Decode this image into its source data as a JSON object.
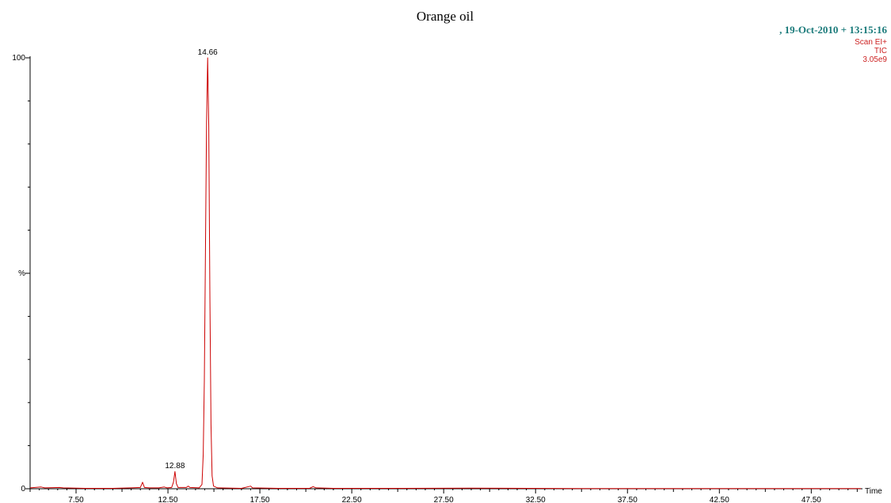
{
  "chart_data": {
    "type": "line",
    "title": "Orange oil",
    "header": {
      "date_line": ",  19-Oct-2010 + 13:15:16",
      "scan_mode": "Scan EI+",
      "trace": "TIC",
      "intensity": "3.05e9"
    },
    "xlabel": "Time",
    "ylabel": "%",
    "xlim": [
      5.0,
      50.2
    ],
    "ylim": [
      0,
      100
    ],
    "x_tick_labels": [
      "7.50",
      "12.50",
      "17.50",
      "22.50",
      "27.50",
      "32.50",
      "37.50",
      "42.50",
      "47.50"
    ],
    "x_major_ticks": [
      7.5,
      12.5,
      17.5,
      22.5,
      27.5,
      32.5,
      37.5,
      42.5,
      47.5
    ],
    "y_ticks": [
      {
        "value": 0,
        "label": "0"
      },
      {
        "value": 50,
        "label": "%"
      },
      {
        "value": 100,
        "label": "100"
      }
    ],
    "peak_labels": [
      {
        "x": 14.66,
        "y": 100,
        "label": "14.66"
      },
      {
        "x": 12.88,
        "y": 4,
        "label": "12.88"
      }
    ],
    "series": [
      {
        "color": "#cc0000",
        "points": [
          [
            5.0,
            0.2
          ],
          [
            5.6,
            0.4
          ],
          [
            5.8,
            0.2
          ],
          [
            6.6,
            0.3
          ],
          [
            6.8,
            0.2
          ],
          [
            8.0,
            0.1
          ],
          [
            9.5,
            0.1
          ],
          [
            10.5,
            0.2
          ],
          [
            11.0,
            0.3
          ],
          [
            11.12,
            1.5
          ],
          [
            11.22,
            0.3
          ],
          [
            11.5,
            0.2
          ],
          [
            12.0,
            0.2
          ],
          [
            12.3,
            0.4
          ],
          [
            12.45,
            0.2
          ],
          [
            12.7,
            0.3
          ],
          [
            12.8,
            1.5
          ],
          [
            12.88,
            4.0
          ],
          [
            12.96,
            1.2
          ],
          [
            13.05,
            0.3
          ],
          [
            13.5,
            0.3
          ],
          [
            13.6,
            0.6
          ],
          [
            13.7,
            0.3
          ],
          [
            14.2,
            0.2
          ],
          [
            14.35,
            1.0
          ],
          [
            14.42,
            8.0
          ],
          [
            14.48,
            25.0
          ],
          [
            14.54,
            55.0
          ],
          [
            14.6,
            85.0
          ],
          [
            14.66,
            100.0
          ],
          [
            14.72,
            84.0
          ],
          [
            14.78,
            45.0
          ],
          [
            14.84,
            15.0
          ],
          [
            14.9,
            3.0
          ],
          [
            14.98,
            0.6
          ],
          [
            15.2,
            0.2
          ],
          [
            16.5,
            0.1
          ],
          [
            17.0,
            0.6
          ],
          [
            17.1,
            0.2
          ],
          [
            18.5,
            0.1
          ],
          [
            20.2,
            0.1
          ],
          [
            20.4,
            0.5
          ],
          [
            20.55,
            0.2
          ],
          [
            21.5,
            0.1
          ],
          [
            25.0,
            0.1
          ],
          [
            29.0,
            0.15
          ],
          [
            35.0,
            0.05
          ],
          [
            42.0,
            0.05
          ],
          [
            50.2,
            0.05
          ]
        ]
      }
    ],
    "colors": {
      "trace": "#cc0000",
      "axes": "#000000",
      "date": "#1a7a7a",
      "header_red": "#cc2222"
    }
  }
}
